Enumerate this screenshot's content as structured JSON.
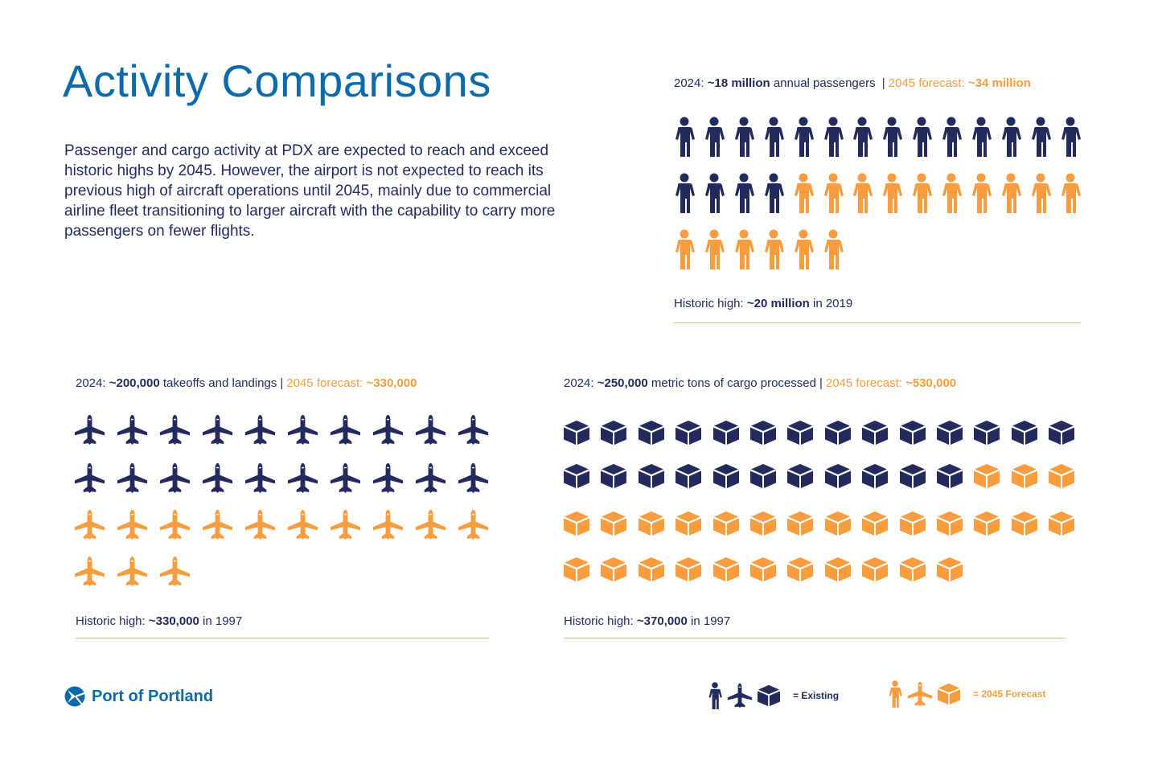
{
  "title": "Activity Comparisons",
  "intro": "Passenger and cargo activity at PDX are expected to reach and exceed historic highs by 2045. However, the airport is not expected to reach its previous high of aircraft operations until 2045, mainly due to commercial airline fleet transitioning to larger aircraft with the capability to carry more passengers on fewer flights.",
  "colors": {
    "existing": "#222a5e",
    "forecast": "#f89c3d",
    "title": "#0b6aab"
  },
  "passengers": {
    "prefix": "2024: ",
    "value": "~18 million",
    "suffix": " annual passengers",
    "forecast_prefix": "2045 forecast: ",
    "forecast_value": "~34 million",
    "icon": "person-icon",
    "existing_count": 18,
    "forecast_count": 34,
    "historic_prefix": "Historic high: ",
    "historic_value": "~20 million",
    "historic_suffix": " in 2019"
  },
  "operations": {
    "prefix": "2024: ",
    "value": "~200,000",
    "suffix": " takeoffs and landings",
    "forecast_prefix": "2045 forecast: ",
    "forecast_value": "~330,000",
    "icon": "airplane-icon",
    "existing_count": 20,
    "forecast_count": 33,
    "historic_prefix": "Historic high: ",
    "historic_value": "~330,000",
    "historic_suffix": " in 1997"
  },
  "cargo": {
    "prefix": "2024: ",
    "value": "~250,000",
    "suffix": " metric tons of cargo processed",
    "forecast_prefix": "2045 forecast: ",
    "forecast_value": "~530,000",
    "icon": "cargo-box-icon",
    "existing_count": 25,
    "forecast_count": 53,
    "historic_prefix": "Historic high: ",
    "historic_value": "~370,000",
    "historic_suffix": " in 1997"
  },
  "legend": {
    "existing": "= Existing",
    "forecast": "= 2045 Forecast"
  },
  "logo": "Port of Portland"
}
